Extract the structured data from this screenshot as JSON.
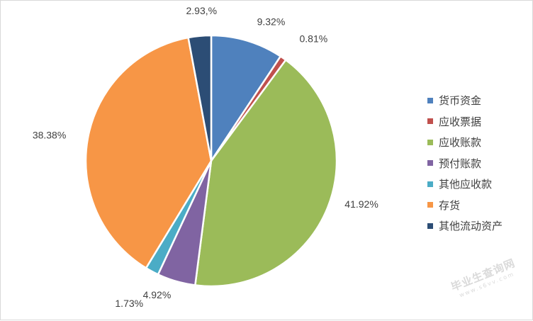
{
  "chart_data": {
    "type": "pie",
    "title": "",
    "legend_position": "right",
    "slices": [
      {
        "name": "货币资金",
        "value": 9.32,
        "label": "9.32%",
        "color": "#4F81BD"
      },
      {
        "name": "应收票据",
        "value": 0.81,
        "label": "0.81%",
        "color": "#C0504D"
      },
      {
        "name": "应收账款",
        "value": 41.92,
        "label": "41.92%",
        "color": "#9BBB59"
      },
      {
        "name": "预付账款",
        "value": 4.92,
        "label": "4.92%",
        "color": "#8064A2"
      },
      {
        "name": "其他应收款",
        "value": 1.73,
        "label": "1.73%",
        "color": "#4BACC6"
      },
      {
        "name": "存货",
        "value": 38.38,
        "label": "38.38%",
        "color": "#F79646"
      },
      {
        "name": "其他流动资产",
        "value": 2.93,
        "label": "2.93,%",
        "color": "#2C4D75"
      }
    ]
  },
  "watermark": {
    "main": "毕业生查询网",
    "sub": "www.s6vv.com"
  }
}
